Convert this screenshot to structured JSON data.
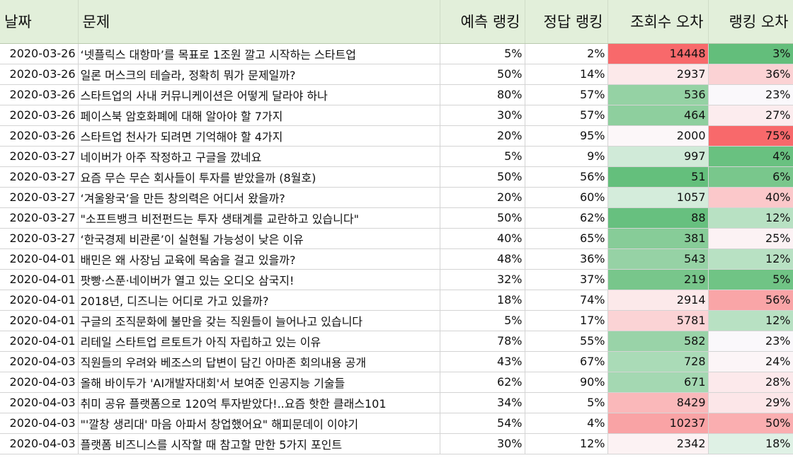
{
  "headers": {
    "date": "날짜",
    "question": "문제",
    "predicted": "예측 랭킹",
    "actual": "정답 랭킹",
    "view_err": "조회수 오차",
    "rank_err": "랭킹 오차"
  },
  "rows": [
    {
      "date": "2020-03-26",
      "question": "‘넷플릭스 대항마’를 목표로 1조원 깔고 시작하는 스타트업",
      "predicted": "5%",
      "actual": "2%",
      "view_err": "14448",
      "rank_err": "3%",
      "view_color": "#f8696b",
      "rank_color": "#63be7b"
    },
    {
      "date": "2020-03-26",
      "question": "일론 머스크의 테슬라, 정확히 뭐가 문제일까?",
      "predicted": "50%",
      "actual": "14%",
      "view_err": "2937",
      "rank_err": "36%",
      "view_color": "#fce9ea",
      "rank_color": "#fbd2d4"
    },
    {
      "date": "2020-03-26",
      "question": "스타트업의 사내 커뮤니케이션은 어떻게 달라야 하나",
      "predicted": "80%",
      "actual": "57%",
      "view_err": "536",
      "rank_err": "23%",
      "view_color": "#95d2a4",
      "rank_color": "#faf8fb"
    },
    {
      "date": "2020-03-26",
      "question": "페이스북 암호화폐에 대해 알아야 할 7가지",
      "predicted": "30%",
      "actual": "57%",
      "view_err": "464",
      "rank_err": "27%",
      "view_color": "#8ecf9e",
      "rank_color": "#fcecee"
    },
    {
      "date": "2020-03-26",
      "question": "스타트업 천사가 되려면 기억해야 할 4가지",
      "predicted": "20%",
      "actual": "95%",
      "view_err": "2000",
      "rank_err": "75%",
      "view_color": "#fcf7f9",
      "rank_color": "#f8696b"
    },
    {
      "date": "2020-03-27",
      "question": "네이버가 아주 작정하고 구글을 깠네요",
      "predicted": "5%",
      "actual": "9%",
      "view_err": "997",
      "rank_err": "4%",
      "view_color": "#d0ead8",
      "rank_color": "#69c180"
    },
    {
      "date": "2020-03-27",
      "question": "요즘 무슨 무슨 회사들이 투자를 받았을까 (8월호)",
      "predicted": "50%",
      "actual": "56%",
      "view_err": "51",
      "rank_err": "6%",
      "view_color": "#64bf7c",
      "rank_color": "#79c78c"
    },
    {
      "date": "2020-03-27",
      "question": "‘겨울왕국’을 만든 창의력은 어디서 왔을까?",
      "predicted": "20%",
      "actual": "60%",
      "view_err": "1057",
      "rank_err": "40%",
      "view_color": "#d4ecdb",
      "rank_color": "#fbc8ca"
    },
    {
      "date": "2020-03-27",
      "question": "\"소프트뱅크 비전펀드는 투자 생태계를 교란하고 있습니다\"",
      "predicted": "50%",
      "actual": "62%",
      "view_err": "88",
      "rank_err": "12%",
      "view_color": "#67c07f",
      "rank_color": "#b8e1c3"
    },
    {
      "date": "2020-03-27",
      "question": "‘한국경제 비관론’이 실현될 가능성이 낮은 이유",
      "predicted": "40%",
      "actual": "65%",
      "view_err": "381",
      "rank_err": "25%",
      "view_color": "#87cc98",
      "rank_color": "#fcf2f4"
    },
    {
      "date": "2020-04-01",
      "question": "배민은 왜 사장님 교육에 목숨을 걸고 있을까?",
      "predicted": "48%",
      "actual": "36%",
      "view_err": "543",
      "rank_err": "12%",
      "view_color": "#96d2a5",
      "rank_color": "#b8e1c3"
    },
    {
      "date": "2020-04-01",
      "question": "팟빵·스푼·네이버가 열고 있는 오디오 삼국지!",
      "predicted": "32%",
      "actual": "37%",
      "view_err": "219",
      "rank_err": "5%",
      "view_color": "#78c68b",
      "rank_color": "#70c485"
    },
    {
      "date": "2020-04-01",
      "question": "2018년, 디즈니는 어디로 가고 있을까?",
      "predicted": "18%",
      "actual": "74%",
      "view_err": "2914",
      "rank_err": "56%",
      "view_color": "#fce9ea",
      "rank_color": "#f9a5a7"
    },
    {
      "date": "2020-04-01",
      "question": "구글의 조직문화에 불만을 갖는 직원들이 늘어나고 있습니다",
      "predicted": "5%",
      "actual": "17%",
      "view_err": "5781",
      "rank_err": "12%",
      "view_color": "#fbd3d5",
      "rank_color": "#b8e1c3"
    },
    {
      "date": "2020-04-01",
      "question": "리테일 스타트업 르토트가 아직 자립하고 있는 이유",
      "predicted": "78%",
      "actual": "55%",
      "view_err": "582",
      "rank_err": "23%",
      "view_color": "#99d3a8",
      "rank_color": "#faf8fb"
    },
    {
      "date": "2020-04-03",
      "question": "직원들의 우려와 베조스의 답변이 담긴 아마존 회의내용 공개",
      "predicted": "43%",
      "actual": "67%",
      "view_err": "728",
      "rank_err": "24%",
      "view_color": "#aadbb7",
      "rank_color": "#fcf5f7"
    },
    {
      "date": "2020-04-03",
      "question": "올해 바이두가 'AI개발자대회'서 보여준 인공지능 기술들",
      "predicted": "62%",
      "actual": "90%",
      "view_err": "671",
      "rank_err": "28%",
      "view_color": "#a4d8b2",
      "rank_color": "#fce9eb"
    },
    {
      "date": "2020-04-03",
      "question": "취미 공유 플랫폼으로 120억 투자받았다!..요즘 핫한 클래스101",
      "predicted": "34%",
      "actual": "5%",
      "view_err": "8429",
      "rank_err": "29%",
      "view_color": "#fab8ba",
      "rank_color": "#fce6e8"
    },
    {
      "date": "2020-04-03",
      "question": "\"'깔창 생리대' 마음 아파서 창업했어요\" 해피문데이 이야기",
      "predicted": "54%",
      "actual": "4%",
      "view_err": "10237",
      "rank_err": "50%",
      "view_color": "#f9a3a5",
      "rank_color": "#faaeb0"
    },
    {
      "date": "2020-04-03",
      "question": "플랫폼 비즈니스를 시작할 때 참고할 만한 5가지 포인트",
      "predicted": "30%",
      "actual": "12%",
      "view_err": "2342",
      "rank_err": "18%",
      "view_color": "#fcf2f3",
      "rank_color": "#dff1e5"
    }
  ]
}
